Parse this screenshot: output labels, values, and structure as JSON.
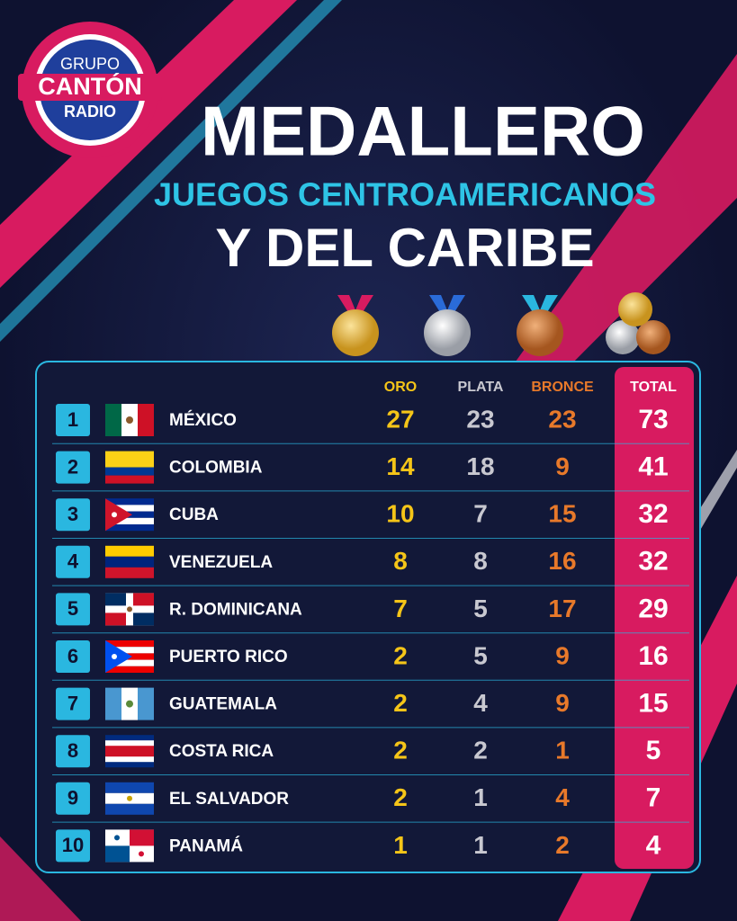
{
  "logo": {
    "line1": "GRUPO",
    "line2": "CANTÓN",
    "line3": "RADIO"
  },
  "header": {
    "title": "MEDALLERO",
    "subtitle": "JUEGOS CENTROAMERICANOS",
    "subtitle2": "Y DEL CARIBE"
  },
  "table": {
    "columns": [
      "ORO",
      "PLATA",
      "BRONCE",
      "TOTAL"
    ],
    "rows": [
      [
        1,
        "MÉXICO",
        27,
        23,
        23,
        73
      ],
      [
        2,
        "COLOMBIA",
        14,
        18,
        9,
        41
      ],
      [
        3,
        "CUBA",
        10,
        7,
        15,
        32
      ],
      [
        4,
        "VENEZUELA",
        8,
        8,
        16,
        32
      ],
      [
        5,
        "R. DOMINICANA",
        7,
        5,
        17,
        29
      ],
      [
        6,
        "PUERTO RICO",
        2,
        5,
        9,
        16
      ],
      [
        7,
        "GUATEMALA",
        2,
        4,
        9,
        15
      ],
      [
        8,
        "COSTA RICA",
        2,
        2,
        1,
        5
      ],
      [
        9,
        "EL SALVADOR",
        2,
        1,
        4,
        7
      ],
      [
        10,
        "PANAMÁ",
        1,
        1,
        2,
        4
      ]
    ]
  }
}
